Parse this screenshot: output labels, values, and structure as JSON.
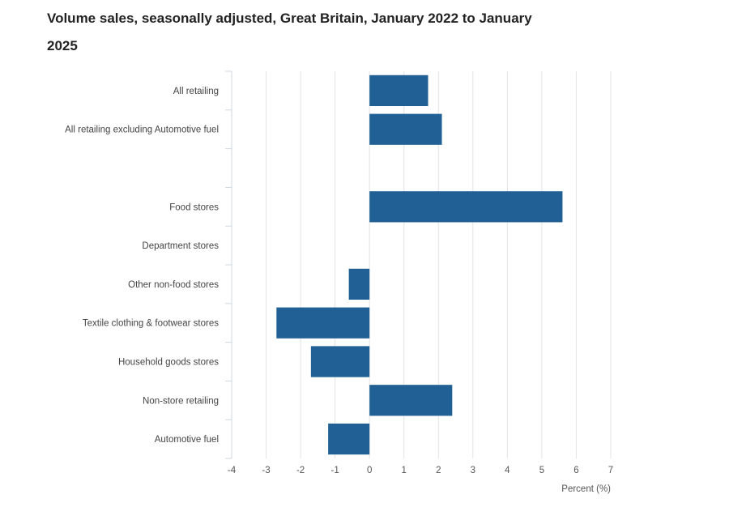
{
  "chart_data": {
    "type": "bar",
    "orientation": "horizontal",
    "title": "Volume sales, seasonally adjusted, Great Britain, January 2022 to January 2025",
    "xlabel": "Percent (%)",
    "ylabel": "",
    "xlim": [
      -4,
      7
    ],
    "xticks": [
      "-4",
      "-3",
      "-2",
      "-1",
      "0",
      "1",
      "2",
      "3",
      "4",
      "5",
      "6",
      "7"
    ],
    "grid": true,
    "color": "#206095",
    "categories": [
      "All retailing",
      "All retailing excluding Automotive fuel",
      "",
      "Food stores",
      "Department stores",
      "Other non-food stores",
      "Textile clothing & footwear stores",
      "Household goods stores",
      "Non-store retailing",
      "Automotive fuel"
    ],
    "values": [
      1.7,
      2.1,
      null,
      5.6,
      null,
      -0.6,
      -2.7,
      -1.7,
      2.4,
      -1.2
    ]
  }
}
